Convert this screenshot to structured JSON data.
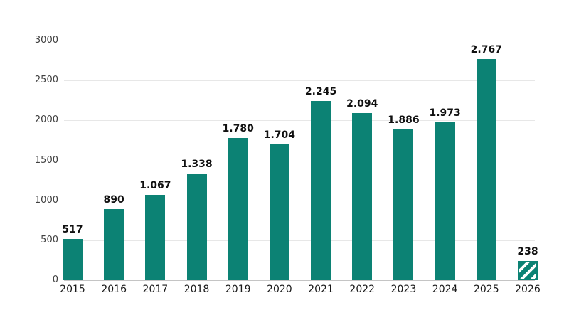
{
  "chart_data": {
    "type": "bar",
    "title": "",
    "xlabel": "",
    "ylabel": "",
    "categories": [
      "2015",
      "2016",
      "2017",
      "2018",
      "2019",
      "2020",
      "2021",
      "2022",
      "2023",
      "2024",
      "2025",
      "2026"
    ],
    "values": [
      517,
      890,
      1067,
      1338,
      1780,
      1704,
      2245,
      2094,
      1886,
      1973,
      2767,
      238
    ],
    "value_labels": [
      "517",
      "890",
      "1.067",
      "1.338",
      "1.780",
      "1.704",
      "2.245",
      "2.094",
      "1.886",
      "1.973",
      "2.767",
      "238"
    ],
    "hatched": [
      false,
      false,
      false,
      false,
      false,
      false,
      false,
      false,
      false,
      false,
      false,
      true
    ],
    "ylim": [
      0,
      3000
    ],
    "yticks": [
      3000,
      2500,
      2000,
      1500,
      1000,
      500,
      0
    ],
    "ytick_labels": [
      "3000",
      "2500",
      "2000",
      "1500",
      "1000",
      "500",
      "0"
    ],
    "grid": true,
    "legend_position": "none",
    "colors": {
      "bar": "#0c8274",
      "hatch_stripe": "#ffffff",
      "gridline": "#e7e7e7",
      "baseline": "#c4c4c4",
      "ytick_text": "#404040",
      "xtick_text": "#1a1a1a",
      "value_text": "#111111",
      "background": "#ffffff"
    }
  }
}
